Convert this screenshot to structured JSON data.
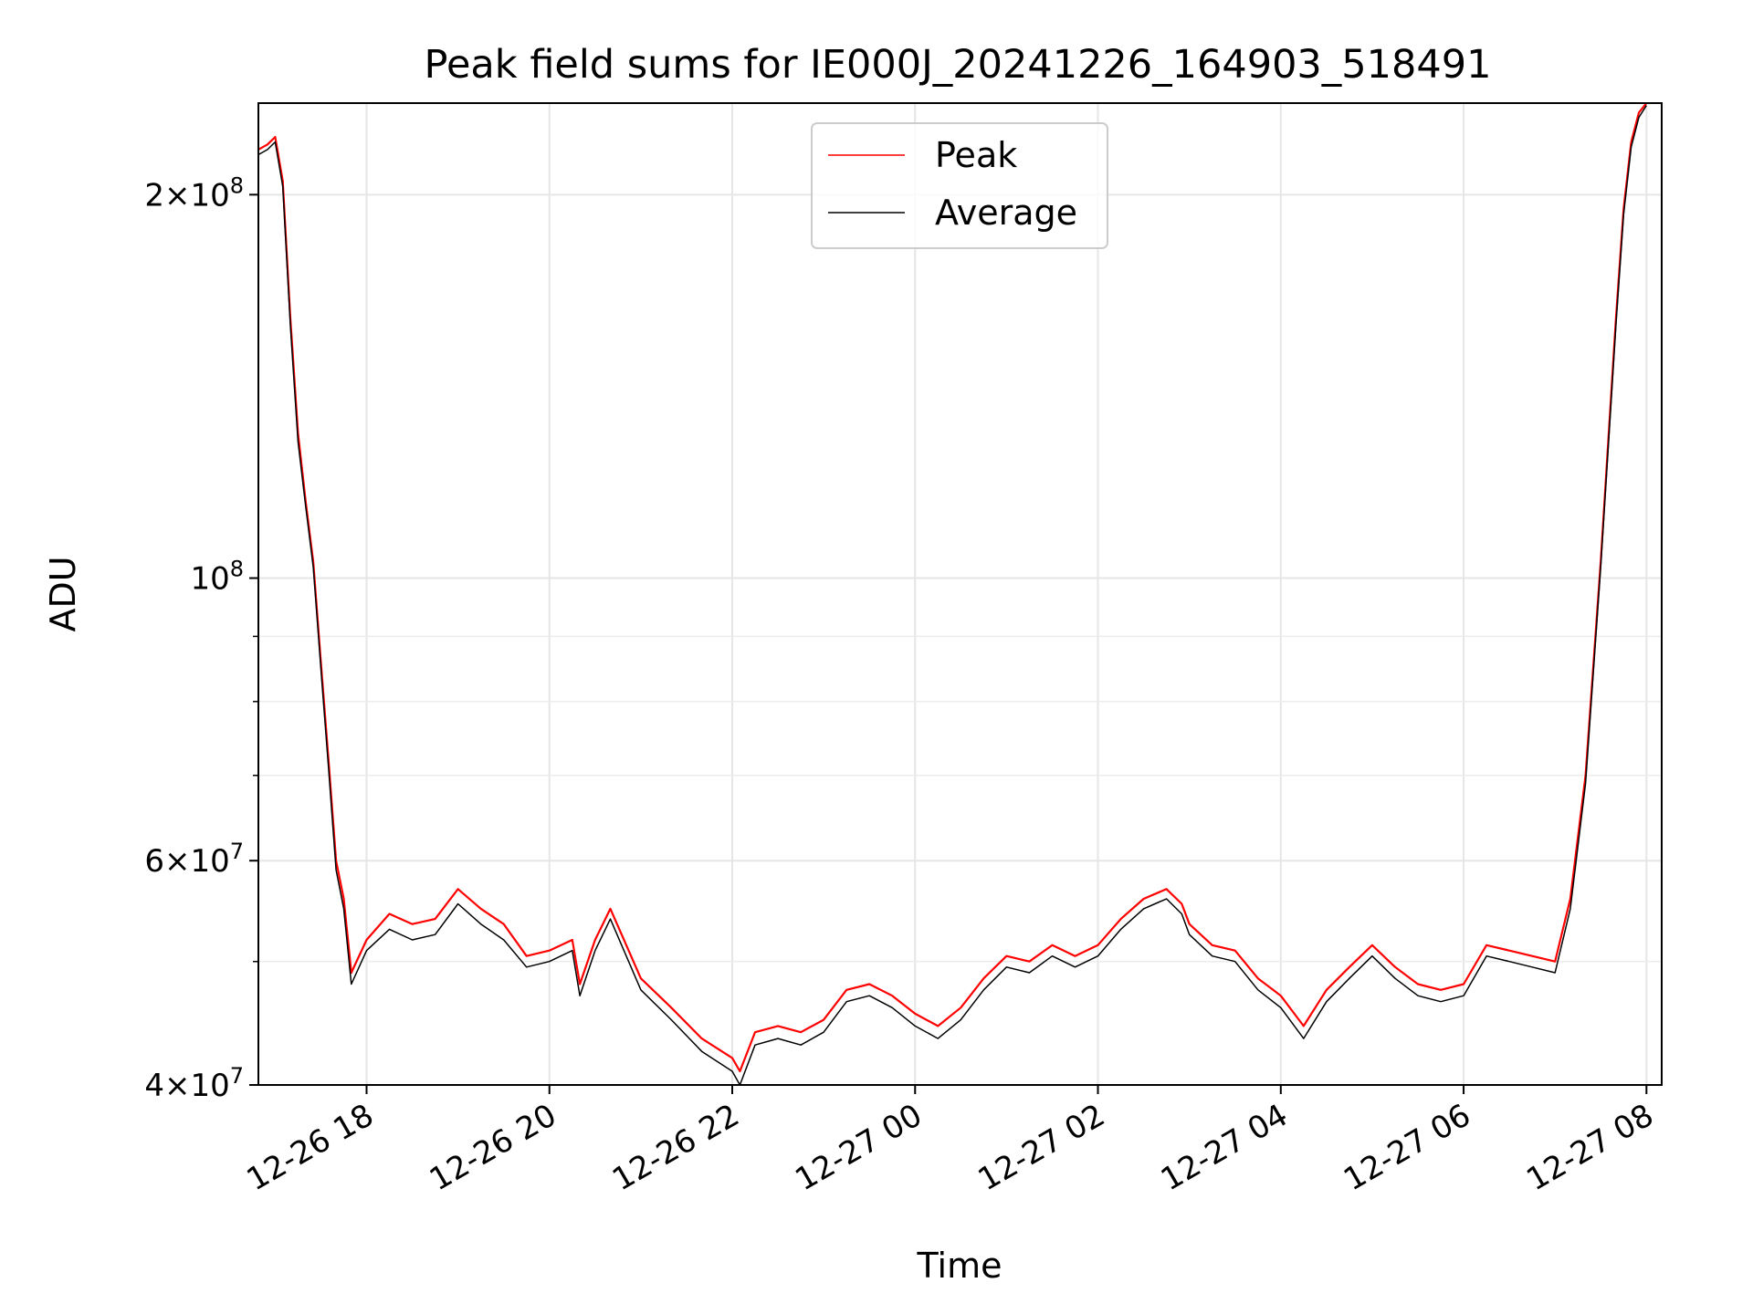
{
  "chart_data": {
    "type": "line",
    "title": "Peak field sums for IE000J_20241226_164903_518491",
    "xlabel": "Time",
    "ylabel": "ADU",
    "y_scale": "log",
    "ylim": [
      40000000,
      236000000
    ],
    "xlim": [
      "2024-12-26 16:49",
      "2024-12-27 08:10"
    ],
    "grid": true,
    "legend_position": "upper center",
    "x_ticks": [
      {
        "t": "2024-12-26 18:00",
        "label": "12-26 18"
      },
      {
        "t": "2024-12-26 20:00",
        "label": "12-26 20"
      },
      {
        "t": "2024-12-26 22:00",
        "label": "12-26 22"
      },
      {
        "t": "2024-12-27 00:00",
        "label": "12-27 00"
      },
      {
        "t": "2024-12-27 02:00",
        "label": "12-27 02"
      },
      {
        "t": "2024-12-27 04:00",
        "label": "12-27 04"
      },
      {
        "t": "2024-12-27 06:00",
        "label": "12-27 06"
      },
      {
        "t": "2024-12-27 08:00",
        "label": "12-27 08"
      }
    ],
    "y_ticks": [
      {
        "value": 40000000,
        "mantissa": "4",
        "exp": "7"
      },
      {
        "value": 60000000,
        "mantissa": "6",
        "exp": "7"
      },
      {
        "value": 100000000,
        "mantissa": "",
        "exp": "8"
      },
      {
        "value": 200000000,
        "mantissa": "2",
        "exp": "8"
      }
    ],
    "series": [
      {
        "name": "Peak",
        "color": "#ff0000",
        "x": [
          "2024-12-26 16:49",
          "2024-12-26 16:55",
          "2024-12-26 17:00",
          "2024-12-26 17:05",
          "2024-12-26 17:10",
          "2024-12-26 17:15",
          "2024-12-26 17:20",
          "2024-12-26 17:25",
          "2024-12-26 17:30",
          "2024-12-26 17:35",
          "2024-12-26 17:40",
          "2024-12-26 17:45",
          "2024-12-26 17:50",
          "2024-12-26 18:00",
          "2024-12-26 18:15",
          "2024-12-26 18:30",
          "2024-12-26 18:45",
          "2024-12-26 19:00",
          "2024-12-26 19:15",
          "2024-12-26 19:30",
          "2024-12-26 19:45",
          "2024-12-26 20:00",
          "2024-12-26 20:15",
          "2024-12-26 20:20",
          "2024-12-26 20:30",
          "2024-12-26 20:40",
          "2024-12-26 21:00",
          "2024-12-26 21:20",
          "2024-12-26 21:40",
          "2024-12-26 22:00",
          "2024-12-26 22:05",
          "2024-12-26 22:15",
          "2024-12-26 22:30",
          "2024-12-26 22:45",
          "2024-12-26 23:00",
          "2024-12-26 23:15",
          "2024-12-26 23:30",
          "2024-12-26 23:45",
          "2024-12-27 00:00",
          "2024-12-27 00:15",
          "2024-12-27 00:30",
          "2024-12-27 00:45",
          "2024-12-27 01:00",
          "2024-12-27 01:15",
          "2024-12-27 01:30",
          "2024-12-27 01:45",
          "2024-12-27 02:00",
          "2024-12-27 02:15",
          "2024-12-27 02:30",
          "2024-12-27 02:45",
          "2024-12-27 02:55",
          "2024-12-27 03:00",
          "2024-12-27 03:15",
          "2024-12-27 03:30",
          "2024-12-27 03:45",
          "2024-12-27 04:00",
          "2024-12-27 04:15",
          "2024-12-27 04:30",
          "2024-12-27 04:45",
          "2024-12-27 05:00",
          "2024-12-27 05:15",
          "2024-12-27 05:30",
          "2024-12-27 05:45",
          "2024-12-27 06:00",
          "2024-12-27 06:15",
          "2024-12-27 06:30",
          "2024-12-27 06:45",
          "2024-12-27 07:00",
          "2024-12-27 07:10",
          "2024-12-27 07:20",
          "2024-12-27 07:30",
          "2024-12-27 07:40",
          "2024-12-27 07:45",
          "2024-12-27 07:50",
          "2024-12-27 07:55",
          "2024-12-27 08:00"
        ],
        "values": [
          217000000,
          219000000,
          222000000,
          205000000,
          160000000,
          130000000,
          115000000,
          103000000,
          86000000,
          72000000,
          60000000,
          56000000,
          49000000,
          52000000,
          54500000,
          53500000,
          54000000,
          57000000,
          55000000,
          53500000,
          50500000,
          51000000,
          52000000,
          48000000,
          52000000,
          55000000,
          48500000,
          46000000,
          43500000,
          42000000,
          41000000,
          44000000,
          44500000,
          44000000,
          45000000,
          47500000,
          48000000,
          47000000,
          45500000,
          44500000,
          46000000,
          48500000,
          50500000,
          50000000,
          51500000,
          50500000,
          51500000,
          54000000,
          56000000,
          57000000,
          55500000,
          53500000,
          51500000,
          51000000,
          48500000,
          47000000,
          44500000,
          47500000,
          49500000,
          51500000,
          49500000,
          48000000,
          47500000,
          48000000,
          51500000,
          51000000,
          50500000,
          50000000,
          56000000,
          70000000,
          103000000,
          160000000,
          195000000,
          220000000,
          232000000,
          236000000
        ]
      },
      {
        "name": "Average",
        "color": "#000000",
        "x": [
          "2024-12-26 16:49",
          "2024-12-26 16:55",
          "2024-12-26 17:00",
          "2024-12-26 17:05",
          "2024-12-26 17:10",
          "2024-12-26 17:15",
          "2024-12-26 17:20",
          "2024-12-26 17:25",
          "2024-12-26 17:30",
          "2024-12-26 17:35",
          "2024-12-26 17:40",
          "2024-12-26 17:45",
          "2024-12-26 17:50",
          "2024-12-26 18:00",
          "2024-12-26 18:15",
          "2024-12-26 18:30",
          "2024-12-26 18:45",
          "2024-12-26 19:00",
          "2024-12-26 19:15",
          "2024-12-26 19:30",
          "2024-12-26 19:45",
          "2024-12-26 20:00",
          "2024-12-26 20:15",
          "2024-12-26 20:20",
          "2024-12-26 20:30",
          "2024-12-26 20:40",
          "2024-12-26 21:00",
          "2024-12-26 21:20",
          "2024-12-26 21:40",
          "2024-12-26 22:00",
          "2024-12-26 22:05",
          "2024-12-26 22:15",
          "2024-12-26 22:30",
          "2024-12-26 22:45",
          "2024-12-26 23:00",
          "2024-12-26 23:15",
          "2024-12-26 23:30",
          "2024-12-26 23:45",
          "2024-12-27 00:00",
          "2024-12-27 00:15",
          "2024-12-27 00:30",
          "2024-12-27 00:45",
          "2024-12-27 01:00",
          "2024-12-27 01:15",
          "2024-12-27 01:30",
          "2024-12-27 01:45",
          "2024-12-27 02:00",
          "2024-12-27 02:15",
          "2024-12-27 02:30",
          "2024-12-27 02:45",
          "2024-12-27 02:55",
          "2024-12-27 03:00",
          "2024-12-27 03:15",
          "2024-12-27 03:30",
          "2024-12-27 03:45",
          "2024-12-27 04:00",
          "2024-12-27 04:15",
          "2024-12-27 04:30",
          "2024-12-27 04:45",
          "2024-12-27 05:00",
          "2024-12-27 05:15",
          "2024-12-27 05:30",
          "2024-12-27 05:45",
          "2024-12-27 06:00",
          "2024-12-27 06:15",
          "2024-12-27 06:30",
          "2024-12-27 06:45",
          "2024-12-27 07:00",
          "2024-12-27 07:10",
          "2024-12-27 07:20",
          "2024-12-27 07:30",
          "2024-12-27 07:40",
          "2024-12-27 07:45",
          "2024-12-27 07:50",
          "2024-12-27 07:55",
          "2024-12-27 08:00"
        ],
        "values": [
          215000000,
          217000000,
          220000000,
          203000000,
          158000000,
          128000000,
          114000000,
          102000000,
          85000000,
          71000000,
          59000000,
          55000000,
          48000000,
          51000000,
          53000000,
          52000000,
          52500000,
          55500000,
          53500000,
          52000000,
          49500000,
          50000000,
          51000000,
          47000000,
          51000000,
          54000000,
          47500000,
          45000000,
          42500000,
          41000000,
          40000000,
          43000000,
          43500000,
          43000000,
          44000000,
          46500000,
          47000000,
          46000000,
          44500000,
          43500000,
          45000000,
          47500000,
          49500000,
          49000000,
          50500000,
          49500000,
          50500000,
          53000000,
          55000000,
          56000000,
          54500000,
          52500000,
          50500000,
          50000000,
          47500000,
          46000000,
          43500000,
          46500000,
          48500000,
          50500000,
          48500000,
          47000000,
          46500000,
          47000000,
          50500000,
          50000000,
          49500000,
          49000000,
          55000000,
          69000000,
          102000000,
          158000000,
          193000000,
          218000000,
          230000000,
          235000000
        ]
      }
    ]
  }
}
